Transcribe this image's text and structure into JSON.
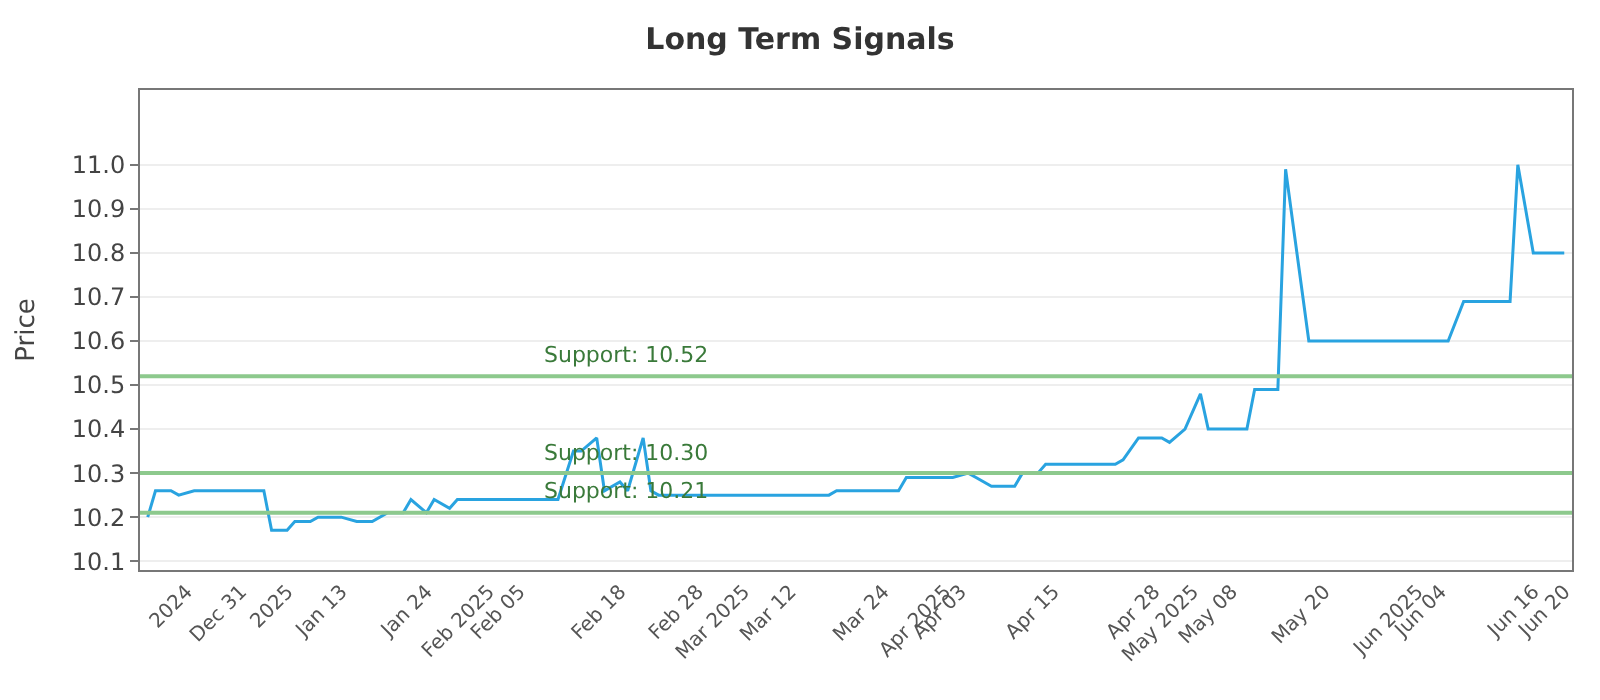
{
  "chart_data": {
    "type": "line",
    "title": "Long Term Signals",
    "ylabel": "Price",
    "x": [
      "2024-12-19",
      "2024-12-20",
      "2024-12-22",
      "2024-12-23",
      "2024-12-25",
      "2025-01-03",
      "2025-01-04",
      "2025-01-06",
      "2025-01-07",
      "2025-01-09",
      "2025-01-10",
      "2025-01-13",
      "2025-01-15",
      "2025-01-17",
      "2025-01-19",
      "2025-01-21",
      "2025-01-22",
      "2025-01-24",
      "2025-01-25",
      "2025-01-27",
      "2025-01-28",
      "2025-02-10",
      "2025-02-12",
      "2025-02-13",
      "2025-02-15",
      "2025-02-16",
      "2025-02-18",
      "2025-02-19",
      "2025-02-21",
      "2025-02-22",
      "2025-02-23",
      "2025-03-17",
      "2025-03-18",
      "2025-03-26",
      "2025-03-27",
      "2025-04-02",
      "2025-04-04",
      "2025-04-05",
      "2025-04-07",
      "2025-04-10",
      "2025-04-11",
      "2025-04-13",
      "2025-04-14",
      "2025-04-18",
      "2025-04-23",
      "2025-04-24",
      "2025-04-26",
      "2025-04-29",
      "2025-04-30",
      "2025-05-02",
      "2025-05-04",
      "2025-05-05",
      "2025-05-10",
      "2025-05-11",
      "2025-05-14",
      "2025-05-15",
      "2025-05-17",
      "2025-05-18",
      "2025-06-05",
      "2025-06-07",
      "2025-06-13",
      "2025-06-14",
      "2025-06-16",
      "2025-06-20"
    ],
    "series": [
      {
        "color": "#29a3e0",
        "values": [
          10.2,
          10.26,
          10.26,
          10.25,
          10.26,
          10.26,
          10.17,
          10.17,
          10.19,
          10.19,
          10.2,
          10.2,
          10.19,
          10.19,
          10.21,
          10.21,
          10.24,
          10.21,
          10.24,
          10.22,
          10.24,
          10.24,
          10.35,
          10.35,
          10.38,
          10.26,
          10.28,
          10.26,
          10.38,
          10.26,
          10.25,
          10.25,
          10.26,
          10.26,
          10.29,
          10.29,
          10.3,
          10.29,
          10.27,
          10.27,
          10.3,
          10.3,
          10.32,
          10.32,
          10.32,
          10.33,
          10.38,
          10.38,
          10.37,
          10.4,
          10.48,
          10.4,
          10.4,
          10.49,
          10.49,
          10.99,
          10.73,
          10.6,
          10.6,
          10.69,
          10.69,
          11.0,
          10.8,
          10.8
        ]
      }
    ],
    "xlim": [
      "2024-12-18",
      "2025-06-21"
    ],
    "xticks": [
      {
        "value": "2024-12-24",
        "label": "2024"
      },
      {
        "value": "2024-12-31",
        "label": "Dec 31"
      },
      {
        "value": "2025-01-06",
        "label": "2025"
      },
      {
        "value": "2025-01-13",
        "label": "Jan 13"
      },
      {
        "value": "2025-01-24",
        "label": "Jan 24"
      },
      {
        "value": "2025-02-01",
        "label": "Feb 2025"
      },
      {
        "value": "2025-02-05",
        "label": "Feb 05"
      },
      {
        "value": "2025-02-18",
        "label": "Feb 18"
      },
      {
        "value": "2025-02-28",
        "label": "Feb 28"
      },
      {
        "value": "2025-03-06",
        "label": "Mar 2025"
      },
      {
        "value": "2025-03-12",
        "label": "Mar 12"
      },
      {
        "value": "2025-03-24",
        "label": "Mar 24"
      },
      {
        "value": "2025-04-01",
        "label": "Apr 2025"
      },
      {
        "value": "2025-04-03",
        "label": "Apr 03"
      },
      {
        "value": "2025-04-15",
        "label": "Apr 15"
      },
      {
        "value": "2025-04-28",
        "label": "Apr 28"
      },
      {
        "value": "2025-05-03",
        "label": "May 2025"
      },
      {
        "value": "2025-05-08",
        "label": "May 08"
      },
      {
        "value": "2025-05-20",
        "label": "May 20"
      },
      {
        "value": "2025-06-01",
        "label": "Jun 2025"
      },
      {
        "value": "2025-06-04",
        "label": "Jun 04"
      },
      {
        "value": "2025-06-16",
        "label": "Jun 16"
      },
      {
        "value": "2025-06-20",
        "label": "Jun 20"
      }
    ],
    "ylim": [
      10.08,
      11.17
    ],
    "yticks": [
      10.1,
      10.2,
      10.3,
      10.4,
      10.5,
      10.6,
      10.7,
      10.8,
      10.9,
      {
        "value": 11.0,
        "label": "11.0"
      }
    ],
    "grid": "y",
    "marker": "none",
    "line_style": "solid",
    "ref_lines": [
      {
        "axis": "y",
        "value": 10.52,
        "label": "Support: 10.52",
        "color": "#8dc98d"
      },
      {
        "axis": "y",
        "value": 10.3,
        "label": "Support: 10.30",
        "color": "#8dc98d"
      },
      {
        "axis": "y",
        "value": 10.21,
        "label": "Support: 10.21",
        "color": "#8dc98d"
      }
    ]
  }
}
